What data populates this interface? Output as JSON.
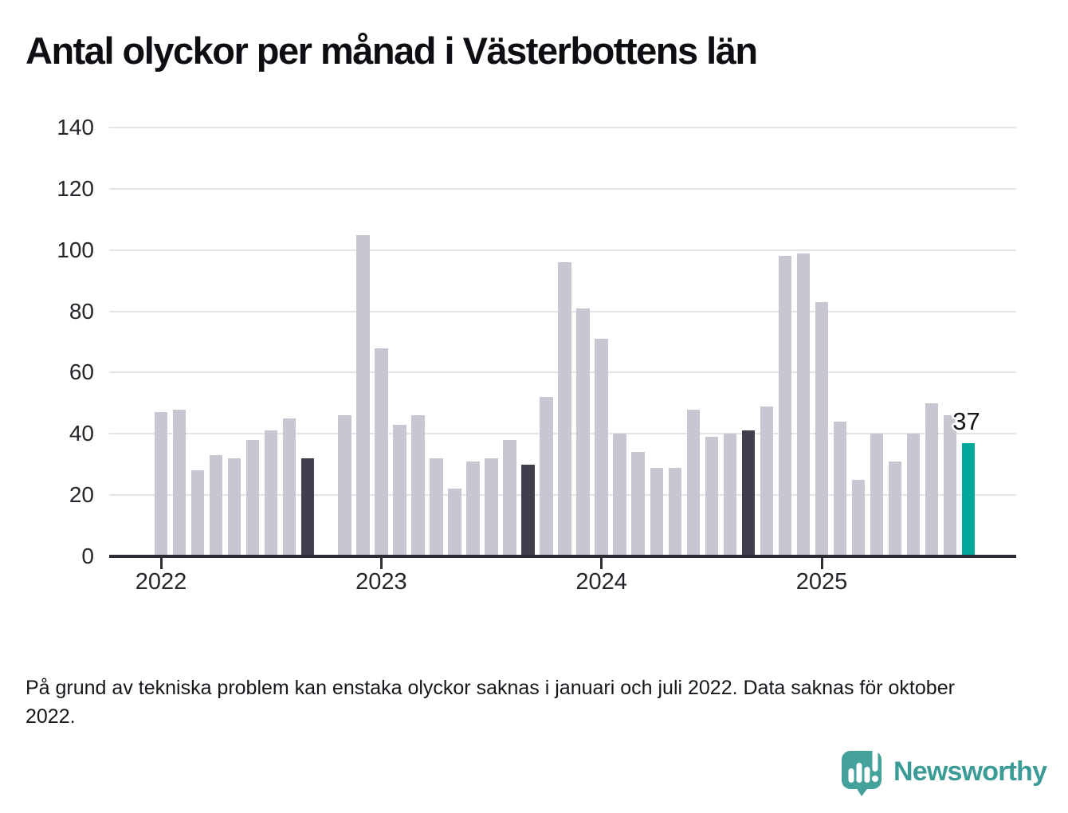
{
  "title": "Antal olyckor per månad i Västerbottens län",
  "footnote": "På grund av tekniska problem kan enstaka olyckor saknas i januari och juli 2022. Data saknas för oktober 2022.",
  "logo": {
    "text": "Newsworthy"
  },
  "colors": {
    "bar": "#C9C6D2",
    "bar_dark": "#413F4E",
    "bar_highlight": "#00A79B",
    "gridline": "#E4E4E6",
    "axis": "#2E2D33",
    "brand_text": "#3B9B96",
    "brand_bubble": "#45A29B"
  },
  "chart_data": {
    "type": "bar",
    "title": "Antal olyckor per månad i Västerbottens län",
    "xlabel": "",
    "ylabel": "",
    "ylim": [
      0,
      140
    ],
    "yticks": [
      0,
      20,
      40,
      60,
      80,
      100,
      120,
      140
    ],
    "year_ticks": [
      "2022",
      "2023",
      "2024",
      "2025"
    ],
    "grid": true,
    "legend": false,
    "annotation": {
      "month": "2025-09",
      "label": "37",
      "value": 37
    },
    "months": [
      {
        "month": "2022-01",
        "value": 47,
        "style": "normal"
      },
      {
        "month": "2022-02",
        "value": 48,
        "style": "normal"
      },
      {
        "month": "2022-03",
        "value": 28,
        "style": "normal"
      },
      {
        "month": "2022-04",
        "value": 33,
        "style": "normal"
      },
      {
        "month": "2022-05",
        "value": 32,
        "style": "normal"
      },
      {
        "month": "2022-06",
        "value": 38,
        "style": "normal"
      },
      {
        "month": "2022-07",
        "value": 41,
        "style": "normal"
      },
      {
        "month": "2022-08",
        "value": 45,
        "style": "normal"
      },
      {
        "month": "2022-09",
        "value": 32,
        "style": "dark"
      },
      {
        "month": "2022-10",
        "value": null,
        "style": "missing"
      },
      {
        "month": "2022-11",
        "value": 46,
        "style": "normal"
      },
      {
        "month": "2022-12",
        "value": 105,
        "style": "normal"
      },
      {
        "month": "2023-01",
        "value": 68,
        "style": "normal"
      },
      {
        "month": "2023-02",
        "value": 43,
        "style": "normal"
      },
      {
        "month": "2023-03",
        "value": 46,
        "style": "normal"
      },
      {
        "month": "2023-04",
        "value": 32,
        "style": "normal"
      },
      {
        "month": "2023-05",
        "value": 22,
        "style": "normal"
      },
      {
        "month": "2023-06",
        "value": 31,
        "style": "normal"
      },
      {
        "month": "2023-07",
        "value": 32,
        "style": "normal"
      },
      {
        "month": "2023-08",
        "value": 38,
        "style": "normal"
      },
      {
        "month": "2023-09",
        "value": 30,
        "style": "dark"
      },
      {
        "month": "2023-10",
        "value": 52,
        "style": "normal"
      },
      {
        "month": "2023-11",
        "value": 96,
        "style": "normal"
      },
      {
        "month": "2023-12",
        "value": 81,
        "style": "normal"
      },
      {
        "month": "2024-01",
        "value": 71,
        "style": "normal"
      },
      {
        "month": "2024-02",
        "value": 40,
        "style": "normal"
      },
      {
        "month": "2024-03",
        "value": 34,
        "style": "normal"
      },
      {
        "month": "2024-04",
        "value": 29,
        "style": "normal"
      },
      {
        "month": "2024-05",
        "value": 29,
        "style": "normal"
      },
      {
        "month": "2024-06",
        "value": 48,
        "style": "normal"
      },
      {
        "month": "2024-07",
        "value": 39,
        "style": "normal"
      },
      {
        "month": "2024-08",
        "value": 40,
        "style": "normal"
      },
      {
        "month": "2024-09",
        "value": 41,
        "style": "dark"
      },
      {
        "month": "2024-10",
        "value": 49,
        "style": "normal"
      },
      {
        "month": "2024-11",
        "value": 98,
        "style": "normal"
      },
      {
        "month": "2024-12",
        "value": 99,
        "style": "normal"
      },
      {
        "month": "2025-01",
        "value": 83,
        "style": "normal"
      },
      {
        "month": "2025-02",
        "value": 44,
        "style": "normal"
      },
      {
        "month": "2025-03",
        "value": 25,
        "style": "normal"
      },
      {
        "month": "2025-04",
        "value": 40,
        "style": "normal"
      },
      {
        "month": "2025-05",
        "value": 31,
        "style": "normal"
      },
      {
        "month": "2025-06",
        "value": 40,
        "style": "normal"
      },
      {
        "month": "2025-07",
        "value": 50,
        "style": "normal"
      },
      {
        "month": "2025-08",
        "value": 46,
        "style": "normal"
      },
      {
        "month": "2025-09",
        "value": 37,
        "style": "highlight"
      }
    ]
  }
}
